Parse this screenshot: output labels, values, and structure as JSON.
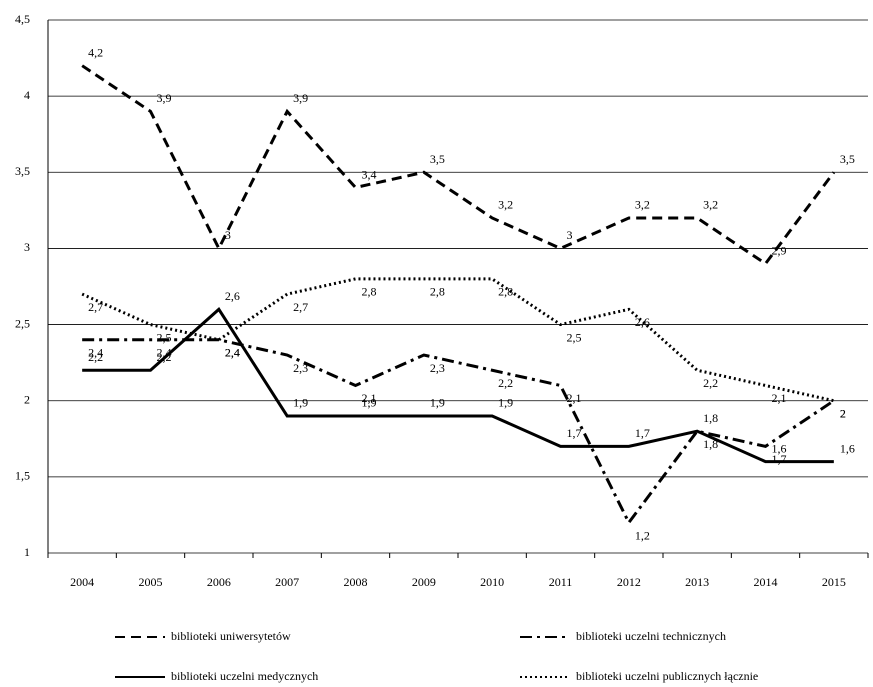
{
  "chart_data": {
    "type": "line",
    "categories": [
      "2004",
      "2005",
      "2006",
      "2007",
      "2008",
      "2009",
      "2010",
      "2011",
      "2012",
      "2013",
      "2014",
      "2015"
    ],
    "ylim": [
      1,
      4.5
    ],
    "yticks": [
      1,
      {
        "value": 1.5,
        "label": "1,5"
      },
      2,
      {
        "value": 2.5,
        "label": "2,5"
      },
      3,
      {
        "value": 3.5,
        "label": "3,5"
      },
      4,
      {
        "value": 4.5,
        "label": "4,5"
      }
    ],
    "grid": true,
    "series": [
      {
        "name": "biblioteki uniwersytetów",
        "color": "#000000",
        "dash": "dashed",
        "values": [
          4.2,
          3.9,
          3,
          3.9,
          3.4,
          3.5,
          3.2,
          3,
          3.2,
          3.2,
          2.9,
          3.5
        ],
        "value_labels": [
          "4,2",
          "3,9",
          "3",
          "3,9",
          "3,4",
          "3,5",
          "3,2",
          "3",
          "3,2",
          "3,2",
          "2,9",
          "3,5"
        ]
      },
      {
        "name": "biblioteki uczelni technicznych",
        "color": "#000000",
        "dash": "dash-dot",
        "values": [
          2.4,
          2.4,
          2.4,
          2.3,
          2.1,
          2.3,
          2.2,
          2.1,
          1.2,
          1.8,
          1.7,
          2
        ],
        "value_labels": [
          "2,4",
          "2,4",
          "2,4",
          "2,3",
          "2,1",
          "2,3",
          "2,2",
          "2,1",
          "1,2",
          "1,8",
          "1,7",
          "2"
        ]
      },
      {
        "name": "biblioteki uczelni medycznych",
        "color": "#000000",
        "dash": "solid",
        "values": [
          2.2,
          2.2,
          2.6,
          1.9,
          1.9,
          1.9,
          1.9,
          1.7,
          1.7,
          1.8,
          1.6,
          1.6
        ],
        "value_labels": [
          "2,2",
          "2,2",
          "2,6",
          "1,9",
          "1,9",
          "1,9",
          "1,9",
          "1,7",
          "1,7",
          "1,8",
          "1,6",
          "1,6"
        ]
      },
      {
        "name": "biblioteki uczelni publicznych łącznie",
        "color": "#000000",
        "dash": "dotted",
        "values": [
          2.7,
          2.5,
          2.4,
          2.7,
          2.8,
          2.8,
          2.8,
          2.5,
          2.6,
          2.2,
          2.1,
          2
        ],
        "value_labels": [
          "2,7",
          "2,5",
          "2,4",
          "2,7",
          "2,8",
          "2,8",
          "2,8",
          "2,5",
          "2,6",
          "2,2",
          "2,1",
          "2"
        ]
      }
    ]
  }
}
